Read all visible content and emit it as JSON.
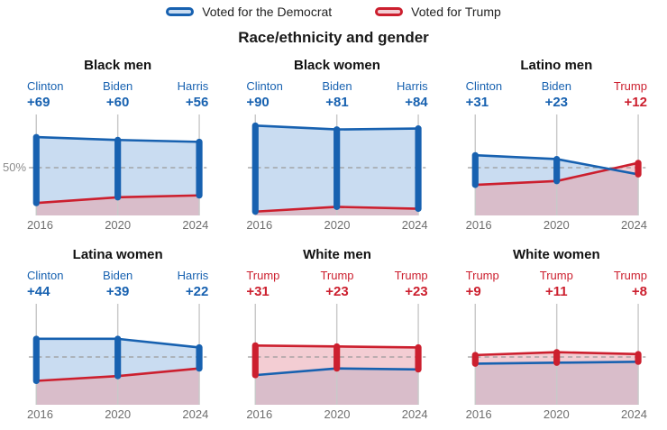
{
  "title": "Race/ethnicity and gender",
  "legend": {
    "items": [
      {
        "label": "Voted for the Democrat",
        "color": "blue"
      },
      {
        "label": "Voted for Trump",
        "color": "red"
      }
    ]
  },
  "y_axis": {
    "fifty_label": "50%"
  },
  "colors": {
    "blue": "#1761b0",
    "red": "#cc1f2e",
    "light_blue": "#c9dcf1",
    "light_pink": "#f3cdd3",
    "mauve": "#d9bdca",
    "grid": "#c9c9c9",
    "dash": "#9a9a9a"
  },
  "chart_data": {
    "type": "line",
    "x": [
      "2016",
      "2020",
      "2024"
    ],
    "ylim": [
      0,
      100
    ],
    "reference_line": 50,
    "panels": [
      {
        "title": "Black men",
        "labels": [
          {
            "name": "Clinton",
            "margin": "+69",
            "color": "blue"
          },
          {
            "name": "Biden",
            "margin": "+60",
            "color": "blue"
          },
          {
            "name": "Harris",
            "margin": "+56",
            "color": "blue"
          }
        ],
        "series": [
          {
            "name": "Democrat",
            "values": [
              82,
              79,
              77
            ]
          },
          {
            "name": "Trump",
            "values": [
              13,
              19,
              21
            ]
          }
        ]
      },
      {
        "title": "Black women",
        "labels": [
          {
            "name": "Clinton",
            "margin": "+90",
            "color": "blue"
          },
          {
            "name": "Biden",
            "margin": "+81",
            "color": "blue"
          },
          {
            "name": "Harris",
            "margin": "+84",
            "color": "blue"
          }
        ],
        "series": [
          {
            "name": "Democrat",
            "values": [
              94,
              90,
              91
            ]
          },
          {
            "name": "Trump",
            "values": [
              4,
              9,
              7
            ]
          }
        ]
      },
      {
        "title": "Latino men",
        "labels": [
          {
            "name": "Clinton",
            "margin": "+31",
            "color": "blue"
          },
          {
            "name": "Biden",
            "margin": "+23",
            "color": "blue"
          },
          {
            "name": "Trump",
            "margin": "+12",
            "color": "red"
          }
        ],
        "series": [
          {
            "name": "Democrat",
            "values": [
              63,
              59,
              43
            ]
          },
          {
            "name": "Trump",
            "values": [
              32,
              36,
              55
            ]
          }
        ]
      },
      {
        "title": "Latina women",
        "labels": [
          {
            "name": "Clinton",
            "margin": "+44",
            "color": "blue"
          },
          {
            "name": "Biden",
            "margin": "+39",
            "color": "blue"
          },
          {
            "name": "Harris",
            "margin": "+22",
            "color": "blue"
          }
        ],
        "series": [
          {
            "name": "Democrat",
            "values": [
              69,
              69,
              60
            ]
          },
          {
            "name": "Trump",
            "values": [
              25,
              30,
              38
            ]
          }
        ]
      },
      {
        "title": "White men",
        "labels": [
          {
            "name": "Trump",
            "margin": "+31",
            "color": "red"
          },
          {
            "name": "Trump",
            "margin": "+23",
            "color": "red"
          },
          {
            "name": "Trump",
            "margin": "+23",
            "color": "red"
          }
        ],
        "series": [
          {
            "name": "Democrat",
            "values": [
              31,
              38,
              37
            ]
          },
          {
            "name": "Trump",
            "values": [
              62,
              61,
              60
            ]
          }
        ]
      },
      {
        "title": "White women",
        "labels": [
          {
            "name": "Trump",
            "margin": "+9",
            "color": "red"
          },
          {
            "name": "Trump",
            "margin": "+11",
            "color": "red"
          },
          {
            "name": "Trump",
            "margin": "+8",
            "color": "red"
          }
        ],
        "series": [
          {
            "name": "Democrat",
            "values": [
              43,
              44,
              45
            ]
          },
          {
            "name": "Trump",
            "values": [
              52,
              55,
              53
            ]
          }
        ]
      }
    ]
  }
}
